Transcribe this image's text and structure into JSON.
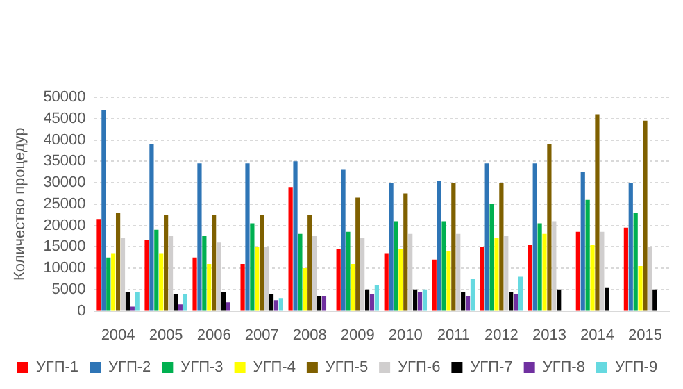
{
  "chart_data": {
    "type": "bar",
    "ylabel": "Количество процедур",
    "categories": [
      "2004",
      "2005",
      "2006",
      "2007",
      "2008",
      "2009",
      "2010",
      "2011",
      "2012",
      "2013",
      "2014",
      "2015"
    ],
    "series": [
      {
        "name": "УГП-1",
        "color": "#ff0000",
        "values": [
          21500,
          16500,
          12500,
          11000,
          29000,
          14500,
          13500,
          12000,
          15000,
          15500,
          18500,
          19500
        ]
      },
      {
        "name": "УГП-2",
        "color": "#2e75b6",
        "values": [
          47000,
          39000,
          34500,
          34500,
          35000,
          33000,
          30000,
          30500,
          34500,
          34500,
          32500,
          30000
        ]
      },
      {
        "name": "УГП-3",
        "color": "#00b050",
        "values": [
          12500,
          19000,
          17500,
          20500,
          18000,
          18500,
          21000,
          21000,
          25000,
          20500,
          26000,
          23000
        ]
      },
      {
        "name": "УГП-4",
        "color": "#ffff00",
        "values": [
          13500,
          13500,
          11000,
          15000,
          10000,
          11000,
          14500,
          14000,
          17000,
          18000,
          15500,
          10500
        ]
      },
      {
        "name": "УГП-5",
        "color": "#7f6000",
        "values": [
          23000,
          22500,
          22500,
          22500,
          22500,
          26500,
          27500,
          30000,
          30000,
          39000,
          46000,
          44500
        ]
      },
      {
        "name": "УГП-6",
        "color": "#d0cece",
        "values": [
          17000,
          17500,
          16000,
          15000,
          17500,
          17000,
          18000,
          18000,
          17500,
          21000,
          18500,
          15000
        ]
      },
      {
        "name": "УГП-7",
        "color": "#000000",
        "values": [
          4500,
          4000,
          4500,
          4000,
          3500,
          5000,
          5000,
          4500,
          4500,
          5000,
          5500,
          5000
        ]
      },
      {
        "name": "УГП-8",
        "color": "#7030a0",
        "values": [
          1000,
          1500,
          2000,
          2500,
          3500,
          4000,
          4500,
          3500,
          4000,
          null,
          null,
          null
        ]
      },
      {
        "name": "УГП-9",
        "color": "#66d9e0",
        "values": [
          4500,
          4000,
          null,
          3000,
          null,
          6000,
          5000,
          7500,
          8000,
          null,
          null,
          null
        ]
      }
    ],
    "ylim": [
      0,
      50000
    ],
    "yticks": [
      0,
      5000,
      10000,
      15000,
      20000,
      25000,
      30000,
      35000,
      40000,
      45000,
      50000
    ],
    "grid": "y",
    "legend": "bottom"
  }
}
